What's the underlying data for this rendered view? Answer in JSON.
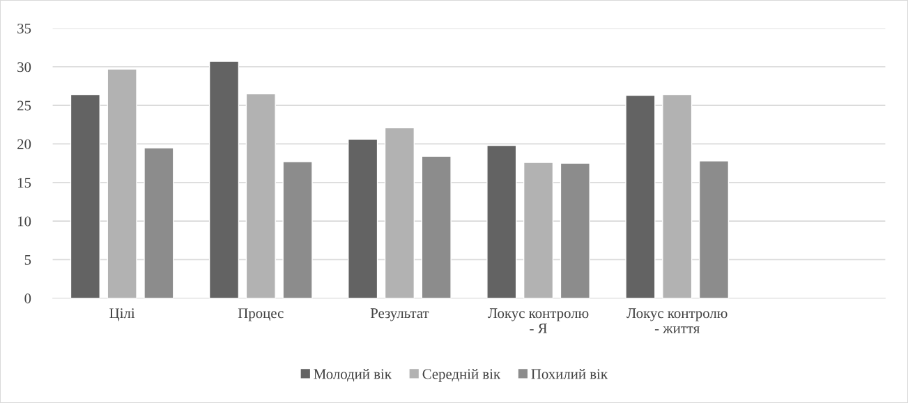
{
  "chart_data": {
    "type": "bar",
    "categories": [
      "Цілі",
      "Процес",
      "Результат",
      "Локус контролю\n- Я",
      "Локус контролю\n- життя",
      null
    ],
    "series": [
      {
        "name": "Молодий вік",
        "color": "#636363",
        "values": [
          26.4,
          30.7,
          20.6,
          19.8,
          26.3,
          null
        ]
      },
      {
        "name": "Середній вік",
        "color": "#b2b2b2",
        "values": [
          29.7,
          26.5,
          22.1,
          17.6,
          26.4,
          null
        ]
      },
      {
        "name": "Похилий вік",
        "color": "#8c8c8c",
        "values": [
          19.5,
          17.7,
          18.4,
          17.5,
          17.8,
          null
        ]
      }
    ],
    "ylim": [
      0,
      35
    ],
    "yticks": [
      0,
      5,
      10,
      15,
      20,
      25,
      30,
      35
    ],
    "grid": "y",
    "legend": "bottom"
  }
}
